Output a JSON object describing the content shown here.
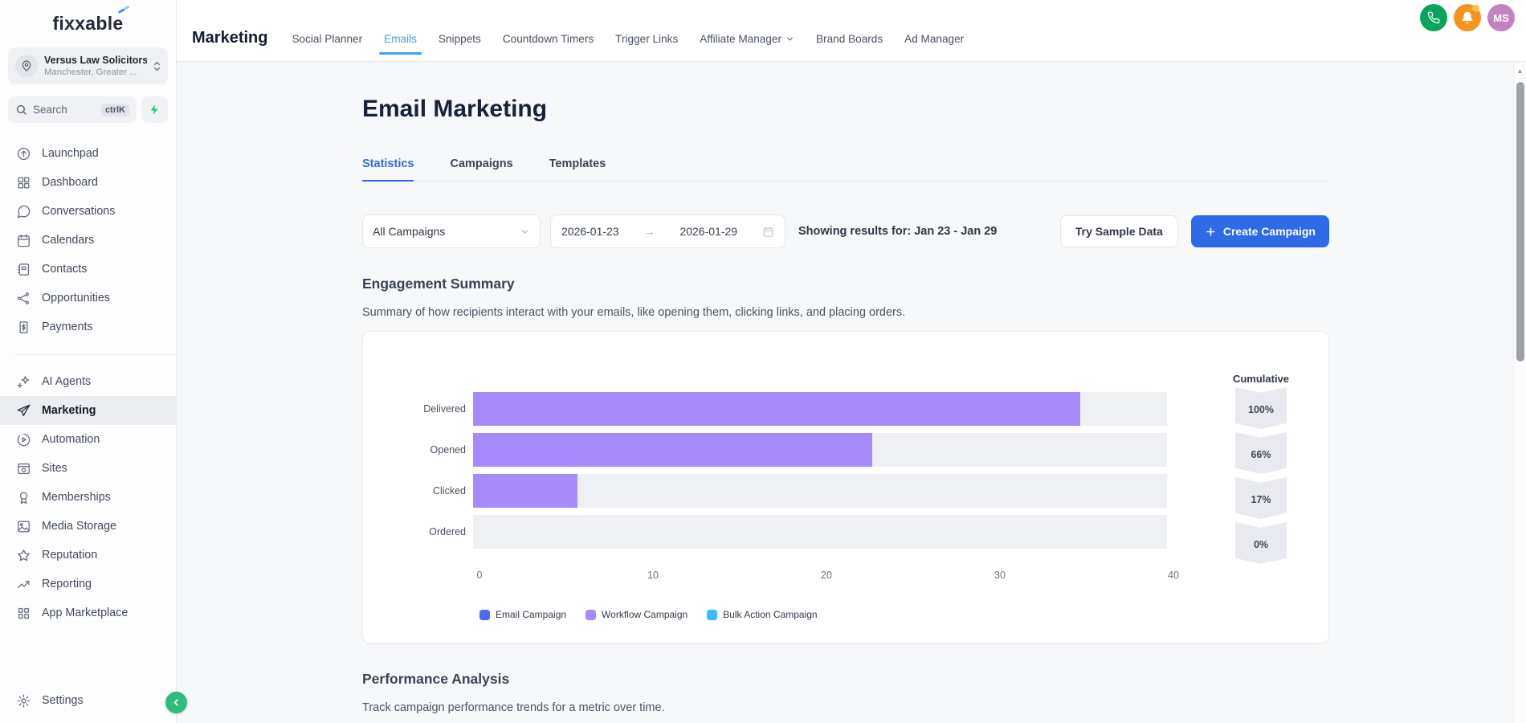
{
  "brand": {
    "logo_text": "fixxable"
  },
  "colors": {
    "primary_blue": "#2e6ae8",
    "active_tab_blue": "#42a0f0",
    "statistics_tab_blue": "#2d6ce6",
    "bar_purple": "#a78bfa",
    "phone_green": "#0ba45c",
    "bell_orange": "#f7941e",
    "avatar_mauve": "#c583be",
    "collapse_green": "#2ebd7e"
  },
  "sidebar": {
    "account": {
      "name": "Versus Law Solicitors",
      "location": "Manchester, Greater ..."
    },
    "search": {
      "placeholder": "Search",
      "shortcut": "ctrlK"
    },
    "groups": [
      {
        "items": [
          {
            "id": "launchpad",
            "label": "Launchpad"
          },
          {
            "id": "dashboard",
            "label": "Dashboard"
          },
          {
            "id": "conversations",
            "label": "Conversations"
          },
          {
            "id": "calendars",
            "label": "Calendars"
          },
          {
            "id": "contacts",
            "label": "Contacts"
          },
          {
            "id": "opportunities",
            "label": "Opportunities"
          },
          {
            "id": "payments",
            "label": "Payments"
          }
        ]
      },
      {
        "items": [
          {
            "id": "ai-agents",
            "label": "AI Agents"
          },
          {
            "id": "marketing",
            "label": "Marketing",
            "active": true
          },
          {
            "id": "automation",
            "label": "Automation"
          },
          {
            "id": "sites",
            "label": "Sites"
          },
          {
            "id": "memberships",
            "label": "Memberships"
          },
          {
            "id": "media-storage",
            "label": "Media Storage"
          },
          {
            "id": "reputation",
            "label": "Reputation"
          },
          {
            "id": "reporting",
            "label": "Reporting"
          },
          {
            "id": "app-marketplace",
            "label": "App Marketplace"
          }
        ]
      }
    ],
    "settings_label": "Settings"
  },
  "topnav": {
    "title": "Marketing",
    "tabs": [
      {
        "id": "social-planner",
        "label": "Social Planner"
      },
      {
        "id": "emails",
        "label": "Emails",
        "active": true
      },
      {
        "id": "snippets",
        "label": "Snippets"
      },
      {
        "id": "countdown-timers",
        "label": "Countdown Timers"
      },
      {
        "id": "trigger-links",
        "label": "Trigger Links"
      },
      {
        "id": "affiliate-manager",
        "label": "Affiliate Manager",
        "dropdown": true
      },
      {
        "id": "brand-boards",
        "label": "Brand Boards"
      },
      {
        "id": "ad-manager",
        "label": "Ad Manager"
      }
    ],
    "avatar_initials": "MS"
  },
  "page": {
    "title": "Email Marketing",
    "tabs": [
      {
        "id": "statistics",
        "label": "Statistics",
        "active": true
      },
      {
        "id": "campaigns",
        "label": "Campaigns"
      },
      {
        "id": "templates",
        "label": "Templates"
      }
    ],
    "filters": {
      "campaign_select": "All Campaigns",
      "date_start": "2026-01-23",
      "date_end": "2026-01-29",
      "showing": "Showing results for: Jan 23 - Jan 29",
      "sample_button": "Try Sample Data",
      "create_button": "Create Campaign"
    },
    "engagement": {
      "title": "Engagement Summary",
      "description": "Summary of how recipients interact with your emails, like opening them, clicking links, and placing orders."
    },
    "performance": {
      "title": "Performance Analysis",
      "description": "Track campaign performance trends for a metric over time."
    }
  },
  "chart_data": {
    "type": "bar",
    "orientation": "horizontal",
    "title": "Engagement Summary",
    "categories": [
      "Delivered",
      "Opened",
      "Clicked",
      "Ordered"
    ],
    "values": [
      35,
      23,
      6,
      0
    ],
    "xlim": [
      0,
      40
    ],
    "xticks": [
      0,
      10,
      20,
      30,
      40
    ],
    "bar_color": "#a78bfa",
    "cumulative_label": "Cumulative",
    "cumulative": [
      "100%",
      "66%",
      "17%",
      "0%"
    ],
    "legend_position": "bottom",
    "legend": [
      {
        "label": "Email Campaign",
        "color": "#4a6cf5"
      },
      {
        "label": "Workflow Campaign",
        "color": "#a78bfa"
      },
      {
        "label": "Bulk Action Campaign",
        "color": "#38bdf8"
      }
    ]
  }
}
